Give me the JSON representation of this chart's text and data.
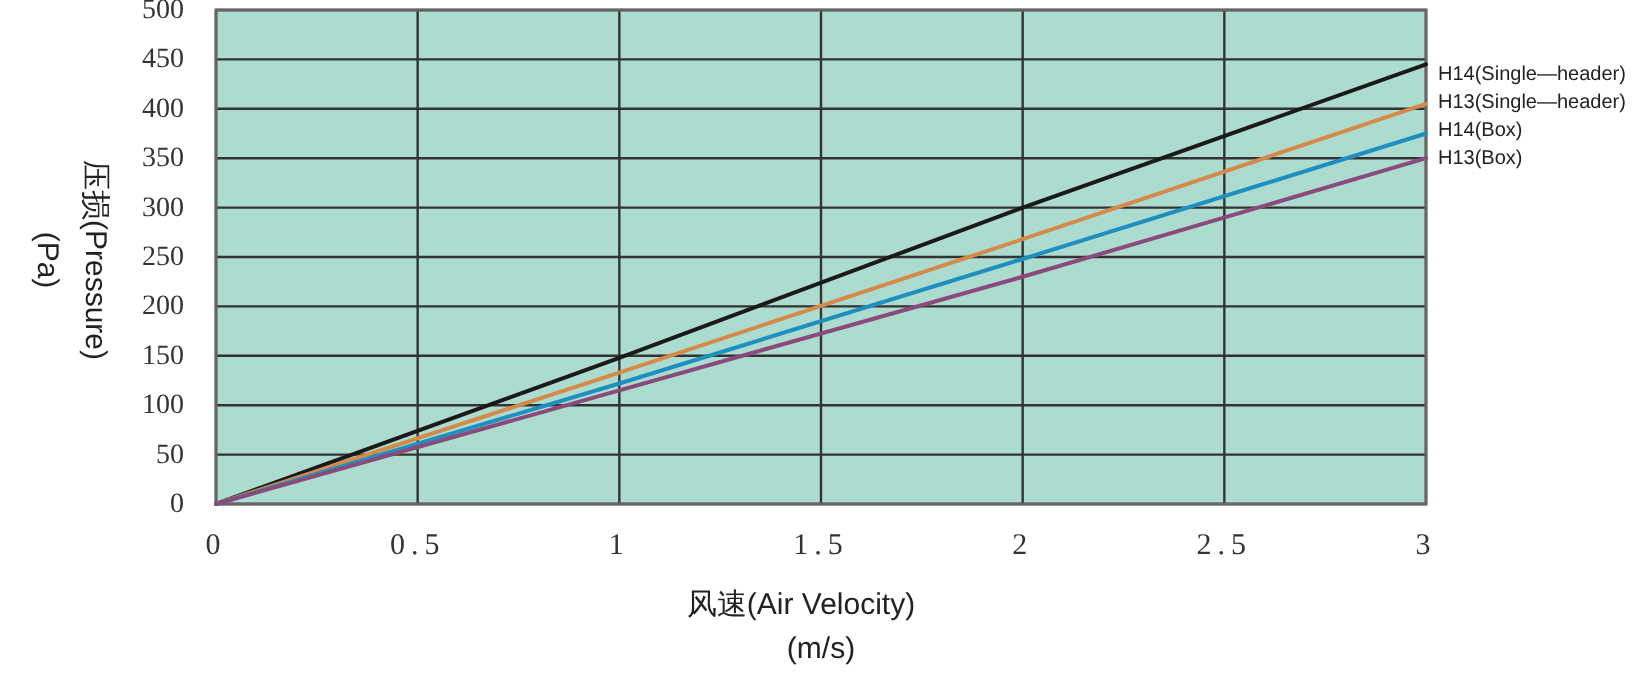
{
  "chart_data": {
    "type": "line",
    "xlabel": "风速(Air Velocity)\n(m/s)",
    "ylabel": "压损(Pressure)\n(Pa)",
    "x": [
      0,
      1,
      2,
      3
    ],
    "series": [
      {
        "name": "H14(Single—header)",
        "color": "#1a1a1a",
        "values": [
          0,
          148,
          300,
          445
        ]
      },
      {
        "name": "H13(Single—header)",
        "color": "#d68a4a",
        "values": [
          0,
          133,
          268,
          405
        ]
      },
      {
        "name": "H14(Box)",
        "color": "#1f8fbf",
        "values": [
          0,
          122,
          248,
          375
        ]
      },
      {
        "name": "H13(Box)",
        "color": "#8a4a7a",
        "values": [
          0,
          115,
          230,
          350
        ]
      }
    ],
    "xlim": [
      0,
      3
    ],
    "ylim": [
      0,
      500
    ],
    "xticks": [
      0,
      0.5,
      1,
      1.5,
      2,
      2.5,
      3
    ],
    "yticks": [
      0,
      50,
      100,
      150,
      200,
      250,
      300,
      350,
      400,
      450,
      500
    ],
    "grid": true,
    "legend": "right",
    "marker": "none",
    "line_style": "solid"
  }
}
